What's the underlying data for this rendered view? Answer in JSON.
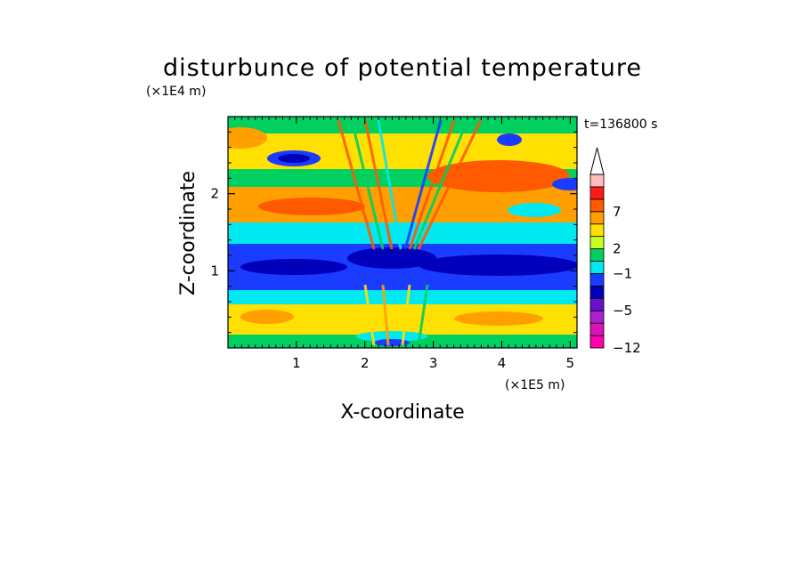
{
  "chart_data": {
    "type": "heatmap",
    "title": "disturbunce of potential temperature",
    "time_label": "t=136800 s",
    "xlabel": "X-coordinate",
    "ylabel": "Z-coordinate",
    "x_scale_label": "(×1E5 m)",
    "y_scale_label": "(×1E4 m)",
    "xlim": [
      0,
      5.1
    ],
    "ylim": [
      0,
      3.0
    ],
    "x_ticks": [
      {
        "value": 1,
        "label": "1"
      },
      {
        "value": 2,
        "label": "2"
      },
      {
        "value": 3,
        "label": "3"
      },
      {
        "value": 4,
        "label": "4"
      },
      {
        "value": 5,
        "label": "5"
      }
    ],
    "y_ticks": [
      {
        "value": 1,
        "label": "1"
      },
      {
        "value": 2,
        "label": "2"
      }
    ],
    "colorbar": {
      "levels_count": 13,
      "labels": [
        {
          "index": 0,
          "label": "−12"
        },
        {
          "index": 3,
          "label": "−5"
        },
        {
          "index": 6,
          "label": "−1"
        },
        {
          "index": 8,
          "label": "2"
        },
        {
          "index": 11,
          "label": "7"
        }
      ],
      "colors": [
        "#ff00aa",
        "#dd11bb",
        "#aa22cc",
        "#6611cc",
        "#0000bb",
        "#1a3cff",
        "#00e8f0",
        "#00d060",
        "#c8ff20",
        "#ffe000",
        "#ffa000",
        "#ff5a00",
        "#ff1a1a",
        "#ffbcbc"
      ],
      "extend_top": true
    }
  }
}
